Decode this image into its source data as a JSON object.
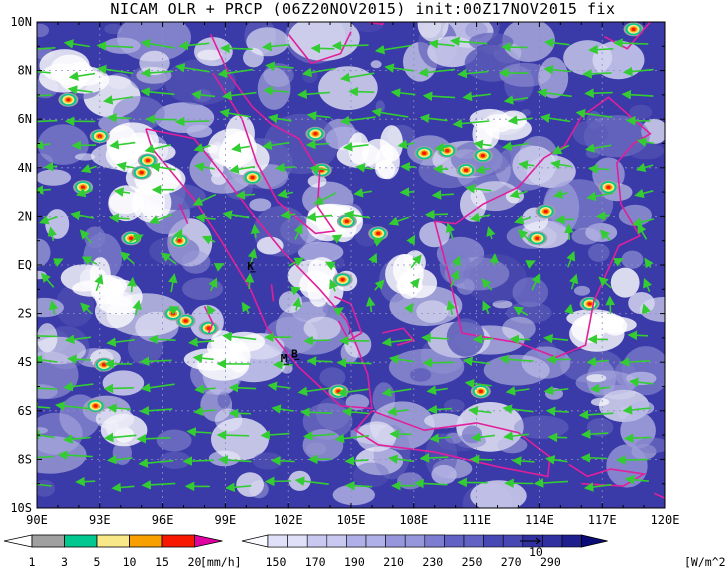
{
  "title": "NICAM OLR + PRCP (06Z20NOV2015) init:00Z17NOV2015 fix",
  "map": {
    "lon_range": [
      90,
      120
    ],
    "lat_range": [
      -10,
      10
    ],
    "lat_labels": [
      "10N",
      "8N",
      "6N",
      "4N",
      "2N",
      "EQ",
      "2S",
      "4S",
      "6S",
      "8S",
      "10S"
    ],
    "lon_labels": [
      "90E",
      "93E",
      "96E",
      "99E",
      "102E",
      "105E",
      "108E",
      "111E",
      "114E",
      "117E",
      "120E"
    ],
    "markers": [
      {
        "label": "K",
        "lon": 100.2,
        "lat": -0.2
      },
      {
        "label": "M",
        "lon": 101.8,
        "lat": -4.0
      },
      {
        "label": "B",
        "lon": 102.3,
        "lat": -3.8
      }
    ],
    "coast_color": "#e0209a",
    "wind_color": "#33cc33"
  },
  "precip_legend": {
    "colors": [
      "#a0a0a0",
      "#00c890",
      "#f8e888",
      "#f8a000",
      "#f81800",
      "#e000a0"
    ],
    "labels": [
      "1",
      "3",
      "5",
      "10",
      "15",
      "20"
    ],
    "unit": "[mm/h]"
  },
  "olr_legend": {
    "colors": [
      "#fafaff",
      "#e0e0f8",
      "#c8c8f0",
      "#b0b0e8",
      "#9696dc",
      "#7c7cd0",
      "#6262c4",
      "#4848b4",
      "#3030a0",
      "#1e1e8c",
      "#0c0c78"
    ],
    "labels": [
      "150",
      "170",
      "190",
      "210",
      "230",
      "250",
      "270",
      "290"
    ],
    "unit": "[W/m^2]",
    "ref_vector": "10"
  }
}
